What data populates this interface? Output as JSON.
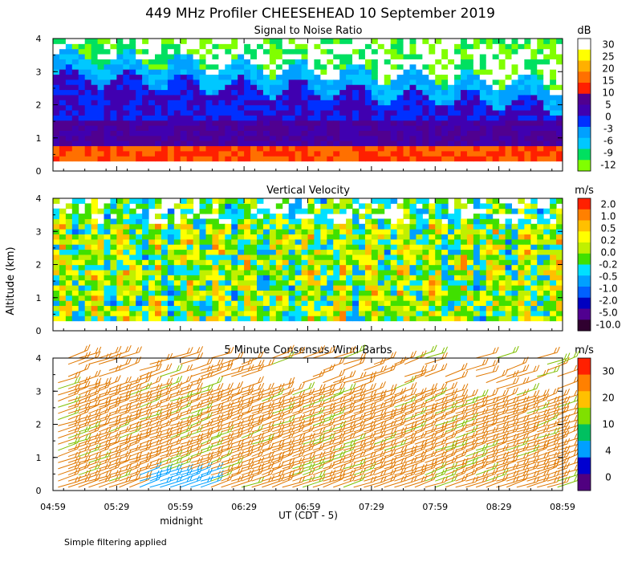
{
  "figure": {
    "title": "449 MHz Profiler CHEESEHEAD 10 September 2019",
    "y_axis_label": "Altitude (km)",
    "x_axis_label": "UT  (CDT - 5)",
    "midnight_label": "midnight",
    "footnote": "Simple filtering applied"
  },
  "chart_data": [
    {
      "type": "heatmap",
      "title": "Signal to Noise Ratio",
      "unit": "dB",
      "x_ticks": [
        "04:59",
        "05:29",
        "05:59",
        "06:29",
        "06:59",
        "07:29",
        "07:59",
        "08:29",
        "08:59"
      ],
      "y_ticks": [
        "0",
        "1",
        "2",
        "3",
        "4"
      ],
      "xlim": [
        "04:59",
        "08:59"
      ],
      "ylim": [
        0,
        4
      ],
      "colorbar_labels": [
        "-12",
        "-9",
        "-6",
        "-3",
        "0",
        "5",
        "10",
        "15",
        "20",
        "25",
        "30"
      ],
      "colorbar_colors": [
        "#80ff00",
        "#00e060",
        "#00c8ff",
        "#00a0ff",
        "#0030ff",
        "#4000b0",
        "#500090",
        "#ff2000",
        "#ff7000",
        "#ffb000",
        "#ffff00",
        "#ffffff"
      ],
      "data_altitude_range_km": [
        0.3,
        4.0
      ]
    },
    {
      "type": "heatmap",
      "title": "Vertical Velocity",
      "unit": "m/s",
      "x_ticks": [
        "04:59",
        "05:29",
        "05:59",
        "06:29",
        "06:59",
        "07:29",
        "07:59",
        "08:29",
        "08:59"
      ],
      "y_ticks": [
        "0",
        "1",
        "2",
        "3",
        "4"
      ],
      "xlim": [
        "04:59",
        "08:59"
      ],
      "ylim": [
        0,
        4
      ],
      "colorbar_labels": [
        "-10.0",
        "-5.0",
        "-2.0",
        "-1.0",
        "-0.5",
        "-0.2",
        "0.0",
        "0.2",
        "0.5",
        "1.0",
        "2.0"
      ],
      "colorbar_colors": [
        "#300030",
        "#500090",
        "#0000c0",
        "#0060ff",
        "#00a0ff",
        "#00e0ff",
        "#40e000",
        "#c0f000",
        "#ffff00",
        "#ffc000",
        "#ff8000",
        "#ff2000"
      ],
      "data_altitude_range_km": [
        0.3,
        4.0
      ]
    },
    {
      "type": "scatter",
      "title": "5 Minute Consensus Wind Barbs",
      "unit": "m/s",
      "x_ticks": [
        "04:59",
        "05:29",
        "05:59",
        "06:29",
        "06:59",
        "07:29",
        "07:59",
        "08:29",
        "08:59"
      ],
      "y_ticks": [
        "0",
        "1",
        "2",
        "3",
        "4"
      ],
      "xlim": [
        "04:59",
        "08:59"
      ],
      "ylim": [
        0,
        4
      ],
      "colorbar_labels": [
        "0",
        "4",
        "10",
        "20",
        "30"
      ],
      "colorbar_colors": [
        "#500080",
        "#0000d0",
        "#00a0ff",
        "#00c060",
        "#80e000",
        "#ffc000",
        "#ff8000",
        "#ff2000"
      ],
      "barb_color_dominant": "#e07800",
      "barb_direction_dominant": "westerly / southwesterly",
      "barb_color_near_surface_midnight": "#00a0ff"
    }
  ]
}
